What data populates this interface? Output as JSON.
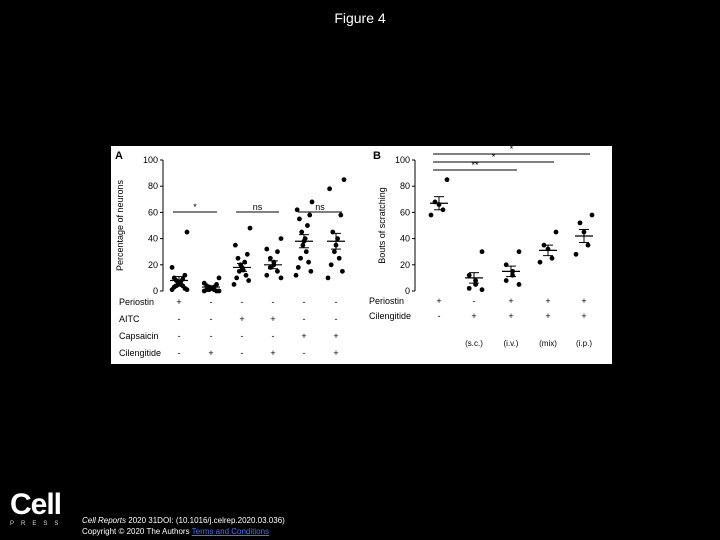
{
  "slide": {
    "title": "Figure 4"
  },
  "chart_data": [
    {
      "panel": "A",
      "type": "scatter",
      "ylabel": "Percentage of neurons",
      "ylim": [
        0,
        100
      ],
      "yticks": [
        0,
        20,
        40,
        60,
        80,
        100
      ],
      "groups": [
        {
          "points": [
            45,
            18,
            12,
            10,
            9,
            8,
            7,
            6,
            5,
            5,
            4,
            4,
            3,
            2,
            1,
            1
          ],
          "mean": 8,
          "sem": 3
        },
        {
          "points": [
            10,
            6,
            5,
            4,
            3,
            3,
            2,
            2,
            1,
            1,
            1,
            0,
            0,
            0
          ],
          "mean": 3,
          "sem": 1
        },
        {
          "points": [
            48,
            35,
            28,
            25,
            22,
            20,
            18,
            16,
            15,
            12,
            10,
            8,
            5
          ],
          "mean": 18,
          "sem": 3
        },
        {
          "points": [
            40,
            32,
            30,
            25,
            22,
            20,
            18,
            15,
            12,
            10
          ],
          "mean": 20,
          "sem": 3
        },
        {
          "points": [
            68,
            62,
            58,
            55,
            50,
            45,
            40,
            38,
            35,
            30,
            25,
            22,
            18,
            15,
            12
          ],
          "mean": 38,
          "sem": 5
        },
        {
          "points": [
            85,
            78,
            58,
            45,
            40,
            35,
            30,
            25,
            20,
            15,
            10
          ],
          "mean": 38,
          "sem": 6
        }
      ],
      "treatments": [
        {
          "label": "Periostin",
          "signs": [
            "+",
            "-",
            "-",
            "-",
            "-",
            "-"
          ]
        },
        {
          "label": "AITC",
          "signs": [
            "-",
            "-",
            "+",
            "+",
            "-",
            "-"
          ]
        },
        {
          "label": "Capsaicin",
          "signs": [
            "-",
            "-",
            "-",
            "-",
            "+",
            "+"
          ]
        },
        {
          "label": "Cilengitide",
          "signs": [
            "-",
            "+",
            "-",
            "+",
            "-",
            "+"
          ]
        }
      ],
      "annotations": [
        {
          "groups": [
            1,
            2
          ],
          "text": "*"
        },
        {
          "groups": [
            3,
            4
          ],
          "text": "ns"
        },
        {
          "groups": [
            5,
            6
          ],
          "text": "ns"
        }
      ]
    },
    {
      "panel": "B",
      "type": "scatter",
      "ylabel": "Bouts of scratching",
      "ylim": [
        0,
        100
      ],
      "yticks": [
        0,
        20,
        40,
        60,
        80,
        100
      ],
      "groups": [
        {
          "points": [
            85,
            68,
            66,
            62,
            58
          ],
          "mean": 67,
          "sem": 5
        },
        {
          "points": [
            30,
            12,
            8,
            5,
            2,
            1
          ],
          "mean": 10,
          "sem": 4
        },
        {
          "points": [
            30,
            20,
            15,
            12,
            8,
            5
          ],
          "mean": 15,
          "sem": 4
        },
        {
          "points": [
            45,
            35,
            32,
            25,
            22
          ],
          "mean": 31,
          "sem": 4
        },
        {
          "points": [
            58,
            52,
            45,
            35,
            28
          ],
          "mean": 42,
          "sem": 5
        }
      ],
      "treatments": [
        {
          "label": "Periostin",
          "signs": [
            "+",
            "-",
            "+",
            "+",
            "+"
          ]
        },
        {
          "label": "Cilengitide",
          "signs": [
            "-",
            "+",
            "+",
            "+",
            "+"
          ]
        }
      ],
      "routes": [
        "",
        "(s.c.)",
        "(i.v.)",
        "(mix)",
        "(i.p.)"
      ],
      "annotations": [
        {
          "groups": [
            1,
            5
          ],
          "text": "*"
        },
        {
          "groups": [
            1,
            4
          ],
          "text": "*"
        },
        {
          "groups": [
            1,
            3
          ],
          "text": "**"
        }
      ]
    }
  ],
  "footer": {
    "logo_word": "Cell",
    "logo_sub": "PRESS",
    "journal": "Cell Reports",
    "citation": "2020 31DOI: (10.1016/j.celrep.2020.03.036)",
    "copyright": "Copyright © 2020 The Authors",
    "link": "Terms and Conditions"
  }
}
